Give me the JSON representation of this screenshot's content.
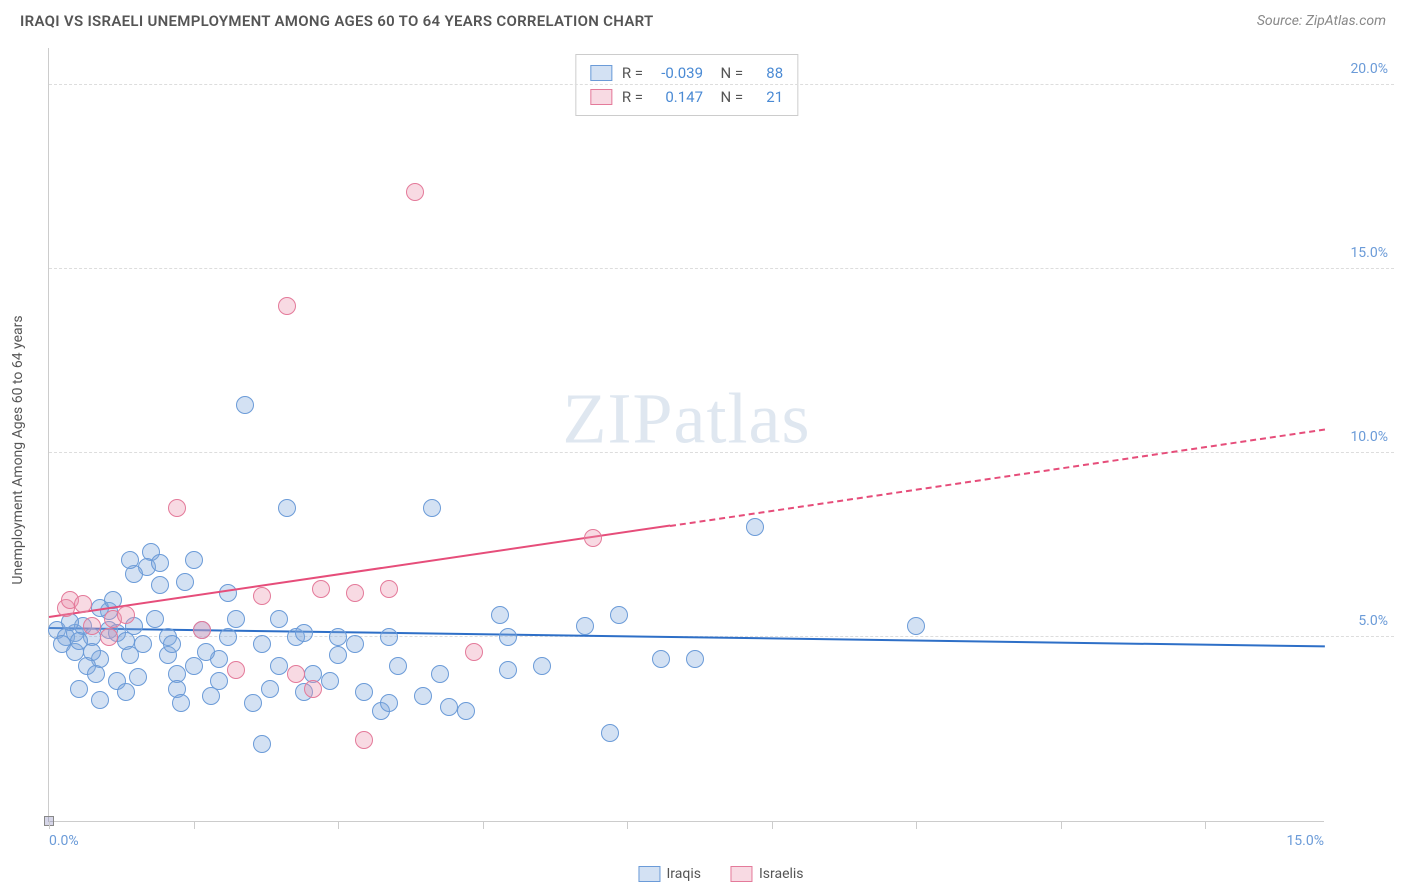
{
  "title": "IRAQI VS ISRAELI UNEMPLOYMENT AMONG AGES 60 TO 64 YEARS CORRELATION CHART",
  "source": "Source: ZipAtlas.com",
  "watermark_bold": "ZIP",
  "watermark_light": "atlas",
  "chart": {
    "type": "scatter",
    "ylabel": "Unemployment Among Ages 60 to 64 years",
    "xlim": [
      0,
      15
    ],
    "ylim": [
      0,
      21
    ],
    "y_gridlines": [
      5,
      10,
      15,
      20
    ],
    "y_tick_labels": [
      "5.0%",
      "10.0%",
      "15.0%",
      "20.0%"
    ],
    "x_ticks": [
      0,
      1.7,
      3.4,
      5.1,
      6.8,
      8.5,
      10.2,
      11.9,
      13.6
    ],
    "x_tick_labels": {
      "left": "0.0%",
      "right": "15.0%"
    },
    "background_color": "#ffffff",
    "grid_color": "#dddddd",
    "axis_color": "#cccccc",
    "tick_label_color": "#6b9bd8",
    "marker_radius": 9,
    "marker_border_width": 1.5,
    "series": [
      {
        "name": "Iraqis",
        "fill": "rgba(130,170,220,0.35)",
        "stroke": "#6b9bd8",
        "line_color": "#2e6fc7",
        "r_value": "-0.039",
        "n_value": "88",
        "trend": {
          "x1": 0.0,
          "y1": 5.2,
          "x2": 15.0,
          "y2": 4.7,
          "solid_until_x": 15.0
        },
        "points": [
          [
            0.1,
            5.2
          ],
          [
            0.2,
            5.0
          ],
          [
            0.3,
            5.1
          ],
          [
            0.15,
            4.8
          ],
          [
            0.4,
            5.3
          ],
          [
            0.3,
            4.6
          ],
          [
            0.5,
            5.0
          ],
          [
            0.6,
            4.4
          ],
          [
            0.7,
            5.2
          ],
          [
            0.45,
            4.2
          ],
          [
            0.8,
            5.1
          ],
          [
            0.35,
            3.6
          ],
          [
            0.55,
            4.0
          ],
          [
            0.9,
            4.9
          ],
          [
            0.7,
            5.7
          ],
          [
            0.25,
            5.4
          ],
          [
            1.0,
            5.3
          ],
          [
            1.1,
            4.8
          ],
          [
            0.8,
            3.8
          ],
          [
            0.6,
            3.3
          ],
          [
            1.2,
            7.3
          ],
          [
            1.15,
            6.9
          ],
          [
            1.3,
            7.0
          ],
          [
            1.3,
            6.4
          ],
          [
            1.0,
            6.7
          ],
          [
            0.95,
            7.1
          ],
          [
            1.25,
            5.5
          ],
          [
            1.4,
            5.0
          ],
          [
            1.5,
            4.0
          ],
          [
            1.5,
            3.6
          ],
          [
            1.4,
            4.5
          ],
          [
            1.55,
            3.2
          ],
          [
            1.45,
            4.8
          ],
          [
            1.8,
            5.2
          ],
          [
            1.7,
            7.1
          ],
          [
            1.9,
            3.4
          ],
          [
            2.0,
            3.8
          ],
          [
            2.0,
            4.4
          ],
          [
            2.1,
            5.0
          ],
          [
            2.2,
            5.5
          ],
          [
            2.3,
            11.3
          ],
          [
            2.4,
            3.2
          ],
          [
            2.5,
            4.8
          ],
          [
            2.5,
            2.1
          ],
          [
            2.6,
            3.6
          ],
          [
            2.7,
            4.2
          ],
          [
            2.8,
            8.5
          ],
          [
            2.9,
            5.0
          ],
          [
            3.0,
            5.1
          ],
          [
            3.1,
            4.0
          ],
          [
            3.0,
            3.5
          ],
          [
            3.3,
            3.8
          ],
          [
            3.4,
            5.0
          ],
          [
            3.4,
            4.5
          ],
          [
            3.7,
            3.5
          ],
          [
            3.6,
            4.8
          ],
          [
            3.9,
            3.0
          ],
          [
            4.0,
            5.0
          ],
          [
            4.0,
            3.2
          ],
          [
            4.1,
            4.2
          ],
          [
            4.5,
            8.5
          ],
          [
            4.4,
            3.4
          ],
          [
            4.6,
            4.0
          ],
          [
            4.7,
            3.1
          ],
          [
            4.9,
            3.0
          ],
          [
            5.3,
            5.6
          ],
          [
            5.4,
            4.1
          ],
          [
            5.4,
            5.0
          ],
          [
            5.8,
            4.2
          ],
          [
            6.3,
            5.3
          ],
          [
            6.6,
            2.4
          ],
          [
            6.7,
            5.6
          ],
          [
            7.2,
            4.4
          ],
          [
            7.6,
            4.4
          ],
          [
            8.3,
            8.0
          ],
          [
            10.2,
            5.3
          ],
          [
            0.5,
            4.6
          ],
          [
            0.9,
            3.5
          ],
          [
            1.6,
            6.5
          ],
          [
            1.7,
            4.2
          ],
          [
            2.1,
            6.2
          ],
          [
            2.7,
            5.5
          ],
          [
            0.6,
            5.8
          ],
          [
            0.35,
            4.9
          ],
          [
            0.75,
            6.0
          ],
          [
            1.05,
            3.9
          ],
          [
            1.85,
            4.6
          ],
          [
            0.95,
            4.5
          ]
        ]
      },
      {
        "name": "Israelis",
        "fill": "rgba(235,150,175,0.35)",
        "stroke": "#e47a9a",
        "line_color": "#e64d7a",
        "r_value": "0.147",
        "n_value": "21",
        "trend": {
          "x1": 0.0,
          "y1": 5.5,
          "x2": 15.0,
          "y2": 10.6,
          "solid_until_x": 7.3
        },
        "points": [
          [
            0.2,
            5.8
          ],
          [
            0.25,
            6.0
          ],
          [
            0.5,
            5.3
          ],
          [
            0.4,
            5.9
          ],
          [
            0.7,
            5.0
          ],
          [
            0.75,
            5.5
          ],
          [
            1.5,
            8.5
          ],
          [
            1.8,
            5.2
          ],
          [
            2.2,
            4.1
          ],
          [
            2.5,
            6.1
          ],
          [
            2.8,
            14.0
          ],
          [
            2.9,
            4.0
          ],
          [
            3.1,
            3.6
          ],
          [
            3.2,
            6.3
          ],
          [
            3.6,
            6.2
          ],
          [
            3.7,
            2.2
          ],
          [
            4.0,
            6.3
          ],
          [
            4.3,
            17.1
          ],
          [
            5.0,
            4.6
          ],
          [
            6.4,
            7.7
          ],
          [
            0.9,
            5.6
          ]
        ]
      }
    ]
  }
}
